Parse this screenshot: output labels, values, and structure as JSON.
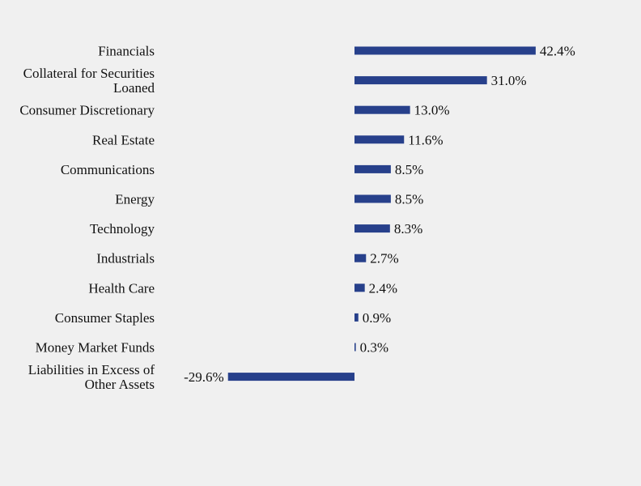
{
  "chart_data": {
    "type": "bar",
    "orientation": "horizontal",
    "title": "",
    "xlabel": "",
    "ylabel": "",
    "value_suffix": "%",
    "grid": false,
    "legend": "none",
    "bar_color": "#27408b",
    "categories": [
      [
        "Financials"
      ],
      [
        "Collateral for Securities",
        "Loaned"
      ],
      [
        "Consumer Discretionary"
      ],
      [
        "Real Estate"
      ],
      [
        "Communications"
      ],
      [
        "Energy"
      ],
      [
        "Technology"
      ],
      [
        "Industrials"
      ],
      [
        "Health Care"
      ],
      [
        "Consumer Staples"
      ],
      [
        "Money Market Funds"
      ],
      [
        "Liabilities in Excess of",
        "Other Assets"
      ]
    ],
    "values": [
      42.4,
      31.0,
      13.0,
      11.6,
      8.5,
      8.5,
      8.3,
      2.7,
      2.4,
      0.9,
      0.3,
      -29.6
    ],
    "value_labels": [
      "42.4%",
      "31.0%",
      "13.0%",
      "11.6%",
      "8.5%",
      "8.5%",
      "8.3%",
      "2.7%",
      "2.4%",
      "0.9%",
      "0.3%",
      "-29.6%"
    ]
  }
}
